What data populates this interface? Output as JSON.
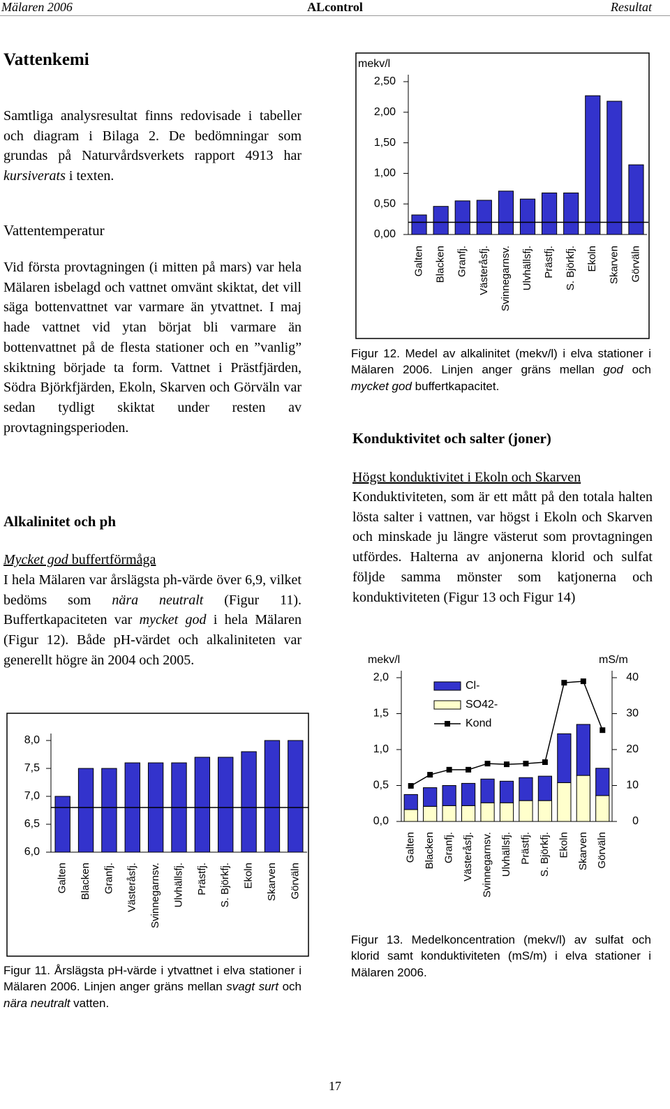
{
  "header": {
    "left": "Mälaren 2006",
    "center": "ALcontrol",
    "right": "Resultat"
  },
  "vattenkemi": {
    "heading": "Vattenkemi",
    "text": [
      "Samtliga analysresultat finns redovisade i tabeller och diagram i Bilaga 2. De bedömningar som grundas på Naturvårdsverkets rapport 4913 har ",
      "kursiverats",
      " i texten."
    ]
  },
  "vattentemperatur": {
    "heading": "Vattentemperatur",
    "text": [
      "Vid första provtagningen (i mitten på mars) var hela Mälaren isbelagd och vattnet omvänt skiktat, det vill säga bottenvattnet var varmare än ytvattnet. I maj hade vattnet vid ytan börjat bli varmare än bottenvattnet på de flesta stationer och en ”vanlig” skiktning började ta form. Vattnet i Prästfjärden, Södra Björkfjärden, Ekoln, Skarven och Görväln var sedan tydligt skiktat under resten av provtagningsperioden."
    ]
  },
  "alkalinitet": {
    "heading": "Alkalinitet och ph",
    "subheading": [
      "Mycket god",
      " buffertförmåga"
    ],
    "text": [
      "I hela Mälaren var årslägsta ph-värde över 6,9, vilket bedöms som ",
      "nära neutralt",
      " (Figur 11). Buffertkapaciteten var ",
      "mycket god",
      " i hela Mälaren (Figur 12). Både pH-värdet och alkaliniteten var generellt högre än 2004 och 2005."
    ]
  },
  "konduktivitet": {
    "heading": "Konduktivitet och salter (joner)",
    "subheading": "Högst konduktivitet i Ekoln och Skarven",
    "text": [
      "Konduktiviteten, som är ett mått på den totala halten lösta salter i vattnen, var högst i Ekoln och Skarven och minskade ju längre västerut som provtagningen utfördes. Halterna av anjonerna klorid och sulfat följde samma mönster som katjonerna och konduktiviteten (Figur 13 och Figur 14)"
    ]
  },
  "page_number": 17,
  "chart_data": [
    {
      "type": "bar",
      "y_label": "mekv/l",
      "categories": [
        "Galten",
        "Blacken",
        "Granfj.",
        "Västeråsfj.",
        "Svinnegarnsv.",
        "Ulvhällsfj.",
        "Prästfj.",
        "S. Björkfj.",
        "Ekoln",
        "Skarven",
        "Görväln"
      ],
      "values": [
        0.32,
        0.46,
        0.55,
        0.56,
        0.71,
        0.58,
        0.68,
        0.68,
        2.27,
        2.18,
        1.14
      ],
      "color": "#3333cc",
      "ref_line": 0.2,
      "ylim": [
        0,
        2.5
      ],
      "yticks": [
        {
          "value": 0,
          "label": "0,00"
        },
        {
          "value": 0.5,
          "label": "0,50"
        },
        {
          "value": 1,
          "label": "1,00"
        },
        {
          "value": 1.5,
          "label": "1,50"
        },
        {
          "value": 2,
          "label": "2,00"
        },
        {
          "value": 2.5,
          "label": "2,50"
        }
      ],
      "caption": [
        "Figur 12. Medel av alkalinitet (mekv/l) i elva stationer i Mälaren 2006. Linjen anger gräns mellan ",
        "god",
        " och ",
        "mycket god",
        " buffertkapacitet."
      ]
    },
    {
      "type": "bar",
      "categories": [
        "Galten",
        "Blacken",
        "Granfj.",
        "Västeråsfj.",
        "Svinnegarnsv.",
        "Ulvhällsfj.",
        "Prästfj.",
        "S. Björkfj.",
        "Ekoln",
        "Skarven",
        "Görväln"
      ],
      "values": [
        7.0,
        7.5,
        7.5,
        7.6,
        7.6,
        7.6,
        7.7,
        7.7,
        7.8,
        8.0,
        8.0
      ],
      "color": "#3333cc",
      "ref_line": 6.8,
      "ylim": [
        6.0,
        8.0
      ],
      "yticks": [
        {
          "value": 6,
          "label": "6,0"
        },
        {
          "value": 6.5,
          "label": "6,5"
        },
        {
          "value": 7,
          "label": "7,0"
        },
        {
          "value": 7.5,
          "label": "7,5"
        },
        {
          "value": 8,
          "label": "8,0"
        }
      ],
      "caption": [
        "Figur 11. Årslägsta pH-värde i ytvattnet i elva stationer i Mälaren 2006. Linjen anger gräns mellan ",
        "svagt surt",
        " och ",
        "nära neutralt",
        " vatten."
      ]
    },
    {
      "type": "combo",
      "y_label": "mekv/l",
      "y2_label": "mS/m",
      "categories": [
        "Galten",
        "Blacken",
        "Granfj.",
        "Västeråsfj.",
        "Svinnegarnsv.",
        "Ulvhällsfj.",
        "Prästfj.",
        "S. Björkfj.",
        "Ekoln",
        "Skarven",
        "Görväln"
      ],
      "series": [
        {
          "name": "Cl-",
          "color": "#3333cc",
          "values": [
            0.21,
            0.26,
            0.28,
            0.31,
            0.33,
            0.3,
            0.32,
            0.34,
            0.68,
            0.71,
            0.38
          ]
        },
        {
          "name": "SO42-",
          "color": "#ffffcc",
          "values": [
            0.165,
            0.21,
            0.22,
            0.22,
            0.26,
            0.26,
            0.29,
            0.29,
            0.54,
            0.64,
            0.36
          ]
        },
        {
          "name": "Kond",
          "color": "#000000",
          "axis": "y2",
          "values": [
            9.9,
            13.0,
            14.4,
            14.4,
            16.1,
            15.9,
            16.1,
            16.5,
            38.6,
            39.0,
            25.4
          ]
        }
      ],
      "ylim": [
        0,
        2.0
      ],
      "yticks": [
        {
          "value": 0,
          "label": "0,0"
        },
        {
          "value": 0.5,
          "label": "0,5"
        },
        {
          "value": 1,
          "label": "1,0"
        },
        {
          "value": 1.5,
          "label": "1,5"
        },
        {
          "value": 2,
          "label": "2,0"
        }
      ],
      "y2lim": [
        0,
        40
      ],
      "y2ticks": [
        0,
        10,
        20,
        30,
        40
      ],
      "caption": [
        "Figur 13. Medelkoncentration (mekv/l) av sulfat och klorid samt konduktiviteten (mS/m) i elva stationer i Mälaren 2006."
      ]
    }
  ]
}
